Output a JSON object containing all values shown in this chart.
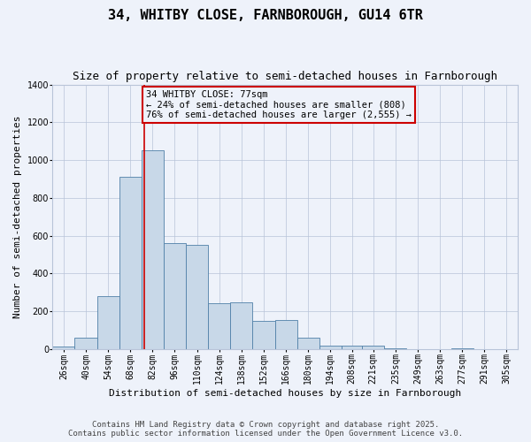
{
  "title_line1": "34, WHITBY CLOSE, FARNBOROUGH, GU14 6TR",
  "title_line2": "Size of property relative to semi-detached houses in Farnborough",
  "xlabel": "Distribution of semi-detached houses by size in Farnborough",
  "ylabel": "Number of semi-detached properties",
  "bar_color": "#c8d8e8",
  "bar_edge_color": "#5080a8",
  "background_color": "#eef2fa",
  "grid_color": "#b8c4d8",
  "annotation_box_color": "#cc0000",
  "vline_color": "#cc0000",
  "categories": [
    "26sqm",
    "40sqm",
    "54sqm",
    "68sqm",
    "82sqm",
    "96sqm",
    "110sqm",
    "124sqm",
    "138sqm",
    "152sqm",
    "166sqm",
    "180sqm",
    "194sqm",
    "208sqm",
    "221sqm",
    "235sqm",
    "249sqm",
    "263sqm",
    "277sqm",
    "291sqm",
    "305sqm"
  ],
  "values": [
    15,
    60,
    280,
    910,
    1050,
    560,
    550,
    245,
    250,
    150,
    155,
    60,
    20,
    20,
    20,
    5,
    0,
    0,
    5,
    0,
    0
  ],
  "bin_left": [
    19,
    33,
    47,
    61,
    75,
    89,
    103,
    117,
    131,
    145,
    159,
    173,
    187,
    201,
    214,
    228,
    242,
    256,
    270,
    284,
    298
  ],
  "bin_right": [
    33,
    47,
    61,
    75,
    89,
    103,
    117,
    131,
    145,
    159,
    173,
    187,
    201,
    214,
    228,
    242,
    256,
    270,
    284,
    298,
    312
  ],
  "xlim_left": 19,
  "xlim_right": 312,
  "property_size": 77,
  "property_label": "34 WHITBY CLOSE: 77sqm",
  "pct_smaller": 24,
  "pct_larger": 76,
  "n_smaller": 808,
  "n_larger": 2555,
  "ylim": [
    0,
    1400
  ],
  "yticks": [
    0,
    200,
    400,
    600,
    800,
    1000,
    1200,
    1400
  ],
  "footer_line1": "Contains HM Land Registry data © Crown copyright and database right 2025.",
  "footer_line2": "Contains public sector information licensed under the Open Government Licence v3.0.",
  "title_fontsize": 11,
  "subtitle_fontsize": 9,
  "axis_label_fontsize": 8,
  "tick_fontsize": 7,
  "annotation_fontsize": 7.5,
  "footer_fontsize": 6.5
}
